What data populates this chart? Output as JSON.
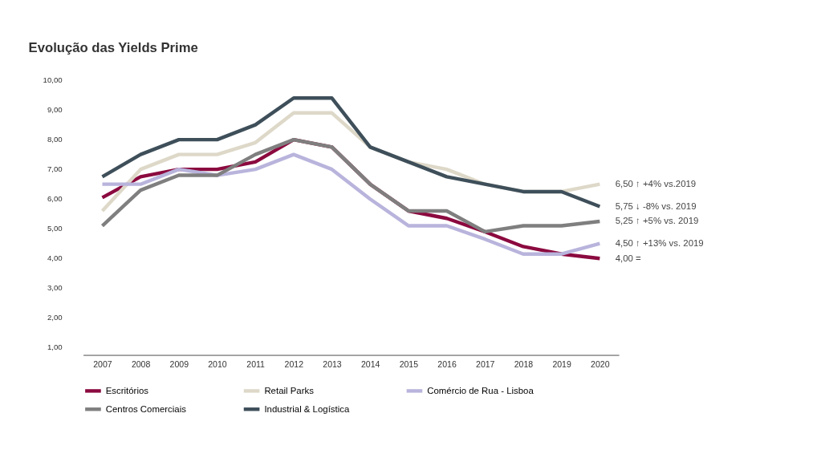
{
  "chart_data": {
    "type": "line",
    "title": "Evolução das Yields Prime",
    "categories": [
      "2007",
      "2008",
      "2009",
      "2010",
      "2011",
      "2012",
      "2013",
      "2014",
      "2015",
      "2016",
      "2017",
      "2018",
      "2019",
      "2020"
    ],
    "series": [
      {
        "name": "Escritórios",
        "color": "#8b0a3f",
        "values": [
          6.05,
          6.75,
          7.0,
          7.0,
          7.25,
          8.0,
          7.75,
          6.5,
          5.6,
          5.35,
          4.9,
          4.4,
          4.15,
          4.0
        ]
      },
      {
        "name": "Retail Parks",
        "color": "#ddd8c8",
        "values": [
          5.6,
          7.0,
          7.5,
          7.5,
          7.9,
          8.9,
          8.9,
          7.75,
          7.25,
          7.0,
          6.5,
          6.25,
          6.25,
          6.5
        ]
      },
      {
        "name": "Comércio de Rua - Lisboa",
        "color": "#b8b4dc",
        "values": [
          6.5,
          6.5,
          7.0,
          6.8,
          7.0,
          7.5,
          7.0,
          6.0,
          5.1,
          5.1,
          4.65,
          4.15,
          4.15,
          4.5
        ]
      },
      {
        "name": "Centros Comerciais",
        "color": "#7f7f7f",
        "values": [
          5.1,
          6.3,
          6.8,
          6.8,
          7.5,
          8.0,
          7.75,
          6.5,
          5.6,
          5.6,
          4.9,
          5.1,
          5.1,
          5.25
        ]
      },
      {
        "name": "Industrial & Logística",
        "color": "#3e4f5a",
        "values": [
          6.75,
          7.5,
          8.0,
          8.0,
          8.5,
          9.4,
          9.4,
          7.75,
          7.25,
          6.75,
          6.5,
          6.25,
          6.25,
          5.75
        ]
      }
    ],
    "ylim": [
      0.75,
      10
    ],
    "yticks": [
      {
        "value": 1,
        "label": "1,00"
      },
      {
        "value": 2,
        "label": "2,00"
      },
      {
        "value": 3,
        "label": "3,00"
      },
      {
        "value": 4,
        "label": "4,00"
      },
      {
        "value": 5,
        "label": "5,00"
      },
      {
        "value": 6,
        "label": "6,00"
      },
      {
        "value": 7,
        "label": "7,00"
      },
      {
        "value": 8,
        "label": "8,00"
      },
      {
        "value": 9,
        "label": "9,00"
      },
      {
        "value": 10,
        "label": "10,00"
      }
    ],
    "annotations": [
      {
        "text": "6,50 ↑ +4% vs.2019",
        "x": "2020",
        "y": 6.5
      },
      {
        "text": "5,75 ↓ -8% vs. 2019",
        "x": "2020",
        "y": 5.75
      },
      {
        "text": "5,25 ↑ +5% vs. 2019",
        "x": "2020",
        "y": 5.25
      },
      {
        "text": "4,50 ↑ +13% vs. 2019",
        "x": "2020",
        "y": 4.5
      },
      {
        "text": "4,00 =",
        "x": "2020",
        "y": 4.0
      }
    ],
    "grid": false,
    "legend": "bottom",
    "marker": "none",
    "line_style": "solid"
  }
}
